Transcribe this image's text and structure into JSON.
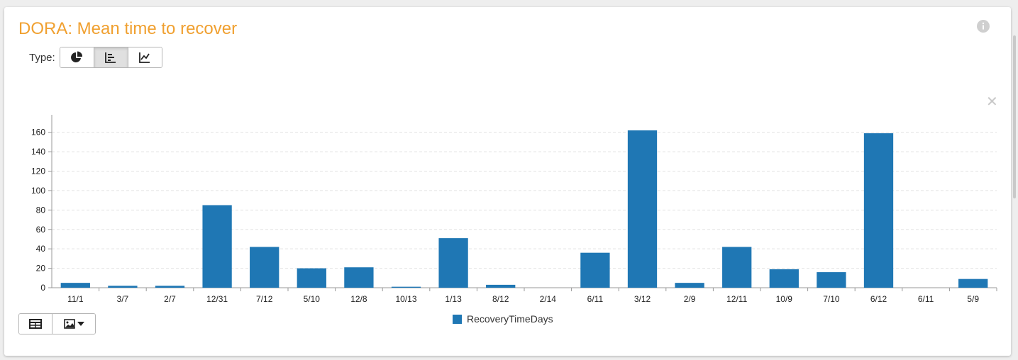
{
  "header": {
    "title": "DORA: Mean time to recover"
  },
  "type_selector": {
    "label": "Type:",
    "options": [
      "pie-chart-icon",
      "bar-chart-icon",
      "line-chart-icon"
    ],
    "selected": "bar-chart-icon"
  },
  "colors": {
    "accent": "#f0a030",
    "bar": "#1f77b4"
  },
  "chart_data": {
    "type": "bar",
    "categories": [
      "11/1",
      "3/7",
      "2/7",
      "12/31",
      "7/12",
      "5/10",
      "12/8",
      "10/13",
      "1/13",
      "8/12",
      "2/14",
      "6/11",
      "3/12",
      "2/9",
      "12/11",
      "10/9",
      "7/10",
      "6/12",
      "6/11",
      "5/9"
    ],
    "series": [
      {
        "name": "RecoveryTimeDays",
        "values": [
          5,
          2,
          2,
          85,
          42,
          20,
          21,
          1,
          51,
          3,
          0,
          36,
          162,
          5,
          42,
          19,
          16,
          159,
          0,
          9
        ]
      }
    ],
    "yticks": [
      0,
      20,
      40,
      60,
      80,
      100,
      120,
      140,
      160
    ],
    "ylim": [
      0,
      178
    ],
    "grid": true,
    "legend_position": "bottom"
  }
}
